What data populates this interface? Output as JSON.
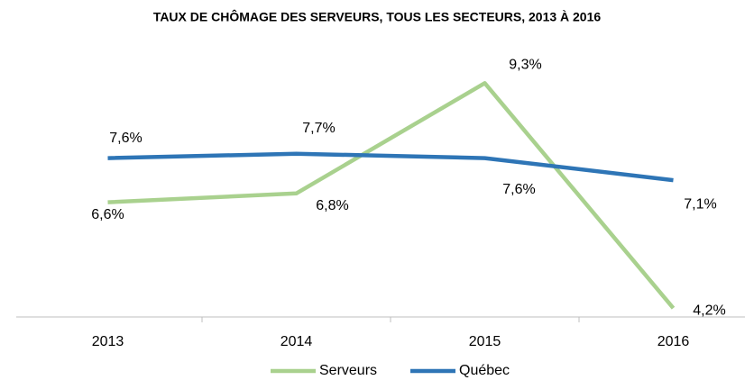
{
  "chart_data": {
    "type": "line",
    "title": "TAUX DE CHÔMAGE DES SERVEURS, TOUS LES SECTEURS, 2013 À 2016",
    "categories": [
      "2013",
      "2014",
      "2015",
      "2016"
    ],
    "series": [
      {
        "name": "Serveurs",
        "color": "#a9d18e",
        "values": [
          6.6,
          6.8,
          9.3,
          4.2
        ],
        "value_labels": [
          "6,6%",
          "6,8%",
          "9,3%",
          "4,2%"
        ]
      },
      {
        "name": "Québec",
        "color": "#2e75b6",
        "values": [
          7.6,
          7.7,
          7.6,
          7.1
        ],
        "value_labels": [
          "7,6%",
          "7,7%",
          "7,6%",
          "7,1%"
        ]
      }
    ],
    "ylim": [
      4,
      10
    ],
    "legend": "bottom"
  }
}
